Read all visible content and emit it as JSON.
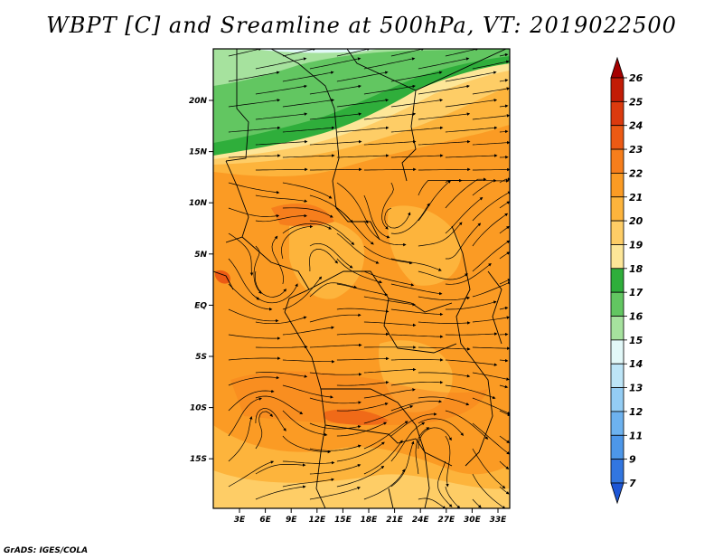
{
  "title": "WBPT [C] and Sreamline at 500hPa, VT: 2019022500",
  "footer": "GrADS: IGES/COLA",
  "lon_labels": [
    "3E",
    "6E",
    "9E",
    "12E",
    "15E",
    "18E",
    "21E",
    "24E",
    "27E",
    "30E",
    "33E"
  ],
  "lat_labels": [
    "20N",
    "15N",
    "10N",
    "5N",
    "EQ",
    "5S",
    "10S",
    "15S"
  ],
  "colorbar": {
    "labels": [
      "26",
      "25",
      "24",
      "23",
      "22",
      "21",
      "20",
      "19",
      "18",
      "17",
      "16",
      "15",
      "14",
      "13",
      "12",
      "11",
      "9",
      "7"
    ],
    "colors": [
      "#a50000",
      "#c21c06",
      "#db3a0e",
      "#ec5a14",
      "#f67e1c",
      "#fb9b24",
      "#fdb43c",
      "#fecd66",
      "#fde698",
      "#2fae3b",
      "#62c661",
      "#a6e29e",
      "#e2f8f8",
      "#bde5f7",
      "#94cdf4",
      "#6db2ef",
      "#4d97e9",
      "#3276e0",
      "#1d56d6"
    ]
  },
  "scalar_field": {
    "description_ranges": "WBPT in degrees C",
    "levels": [
      16,
      17,
      18,
      19,
      20,
      21,
      22,
      23
    ]
  }
}
